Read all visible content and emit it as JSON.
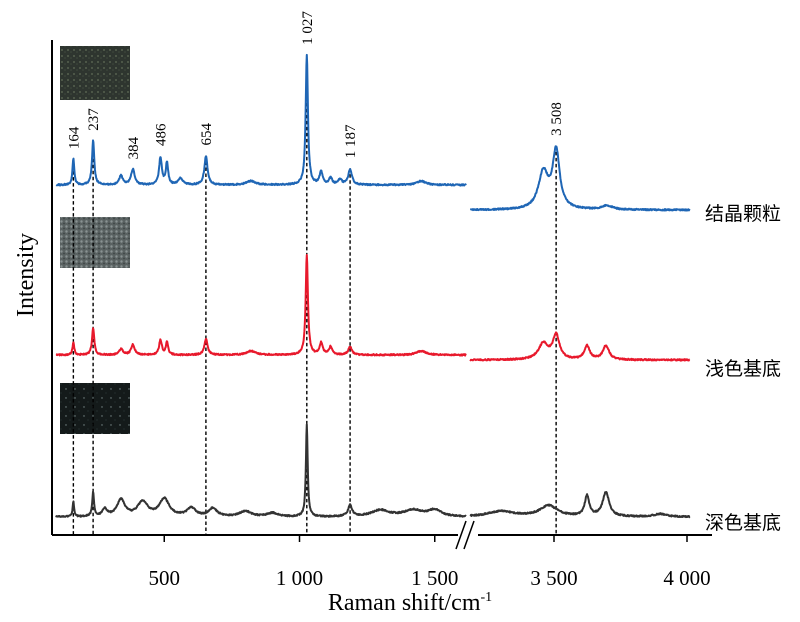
{
  "chart_data": {
    "type": "line",
    "title": "",
    "xlabel": "Raman shift/cm",
    "xlabel_superscript": "-1",
    "ylabel": "Intensity",
    "x_segments": [
      [
        100,
        1615
      ],
      [
        3185,
        4010
      ]
    ],
    "axis_break": "between 1615 and 3185",
    "xticks": [
      {
        "value": 500,
        "label": "500"
      },
      {
        "value": 1000,
        "label": "1 000"
      },
      {
        "value": 1500,
        "label": "1 500"
      },
      {
        "value": 3500,
        "label": "3 500"
      },
      {
        "value": 4000,
        "label": "4 000"
      }
    ],
    "peak_markers": [
      {
        "value": 164,
        "label": "164"
      },
      {
        "value": 237,
        "label": "237"
      },
      {
        "value": 384,
        "label": "384",
        "dashed": false
      },
      {
        "value": 486,
        "label": "486",
        "dashed": false
      },
      {
        "value": 654,
        "label": "654"
      },
      {
        "value": 1027,
        "label": "1 027"
      },
      {
        "value": 1187,
        "label": "1 187"
      },
      {
        "value": 3508,
        "label": "3 508"
      }
    ],
    "intensity_units": "arbitrary (stacked, 1027 peak = 100)",
    "series": [
      {
        "name": "结晶颗粒",
        "color": "#1f66b5",
        "peaks": [
          [
            164,
            20,
            4
          ],
          [
            237,
            34,
            5
          ],
          [
            340,
            7,
            8
          ],
          [
            384,
            12,
            8
          ],
          [
            486,
            21,
            6
          ],
          [
            510,
            17,
            5
          ],
          [
            560,
            5,
            10
          ],
          [
            654,
            22,
            7
          ],
          [
            820,
            3,
            20
          ],
          [
            1027,
            100,
            5
          ],
          [
            1080,
            10,
            7
          ],
          [
            1115,
            5,
            7
          ],
          [
            1150,
            4,
            8
          ],
          [
            1187,
            12,
            8
          ],
          [
            1450,
            3,
            20
          ],
          [
            3460,
            28,
            22
          ],
          [
            3508,
            44,
            16
          ],
          [
            3700,
            3,
            25
          ]
        ]
      },
      {
        "name": "浅色基底",
        "color": "#e8192c",
        "peaks": [
          [
            164,
            12,
            4
          ],
          [
            237,
            27,
            5
          ],
          [
            340,
            6,
            8
          ],
          [
            384,
            10,
            8
          ],
          [
            486,
            15,
            6
          ],
          [
            510,
            13,
            5
          ],
          [
            654,
            16,
            7
          ],
          [
            820,
            4,
            20
          ],
          [
            1027,
            100,
            5
          ],
          [
            1080,
            12,
            7
          ],
          [
            1115,
            8,
            7
          ],
          [
            1187,
            8,
            8
          ],
          [
            1450,
            4,
            20
          ],
          [
            3460,
            16,
            22
          ],
          [
            3508,
            24,
            15
          ],
          [
            3624,
            14,
            12
          ],
          [
            3695,
            14,
            14
          ]
        ]
      },
      {
        "name": "深色基底",
        "color": "#333333",
        "peaks": [
          [
            164,
            17,
            3
          ],
          [
            237,
            26,
            4
          ],
          [
            280,
            8,
            10
          ],
          [
            340,
            18,
            18
          ],
          [
            420,
            16,
            22
          ],
          [
            500,
            19,
            22
          ],
          [
            600,
            9,
            20
          ],
          [
            680,
            9,
            18
          ],
          [
            800,
            6,
            25
          ],
          [
            900,
            4,
            25
          ],
          [
            1027,
            100,
            4
          ],
          [
            1187,
            12,
            9
          ],
          [
            1300,
            7,
            40
          ],
          [
            1420,
            7,
            40
          ],
          [
            1500,
            7,
            30
          ],
          [
            3300,
            6,
            60
          ],
          [
            3480,
            12,
            40
          ],
          [
            3624,
            22,
            10
          ],
          [
            3695,
            26,
            15
          ],
          [
            3900,
            3,
            30
          ]
        ]
      }
    ],
    "inset_images": [
      "结晶颗粒 micrograph",
      "浅色基底 micrograph",
      "深色基底 micrograph"
    ]
  }
}
